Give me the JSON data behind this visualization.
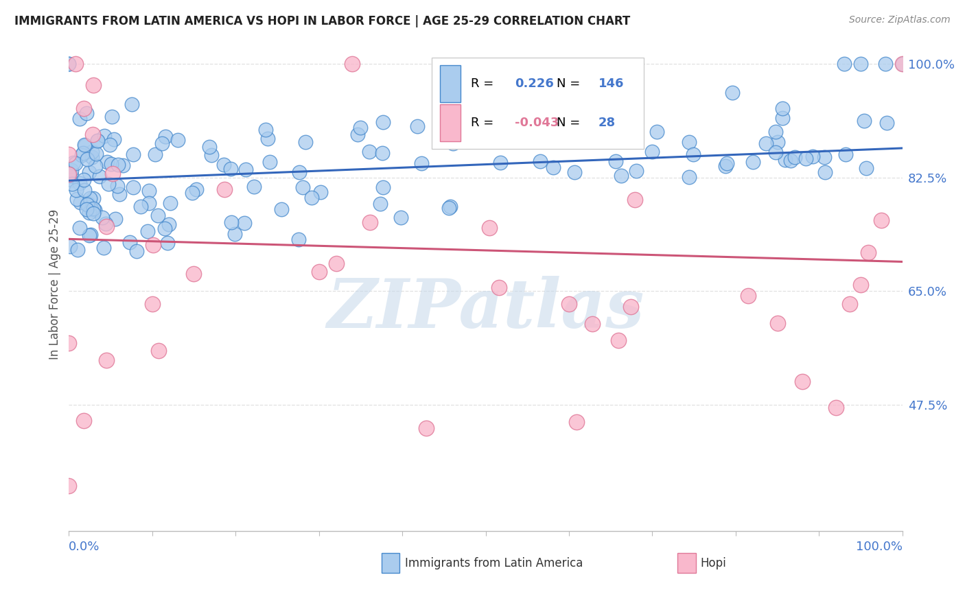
{
  "title": "IMMIGRANTS FROM LATIN AMERICA VS HOPI IN LABOR FORCE | AGE 25-29 CORRELATION CHART",
  "source": "Source: ZipAtlas.com",
  "ylabel": "In Labor Force | Age 25-29",
  "ytick_labels": [
    "100.0%",
    "82.5%",
    "65.0%",
    "47.5%"
  ],
  "ytick_values": [
    1.0,
    0.825,
    0.65,
    0.475
  ],
  "legend_blue_r": "0.226",
  "legend_blue_n": "146",
  "legend_pink_r": "-0.043",
  "legend_pink_n": "28",
  "blue_fill_color": "#aaccee",
  "blue_edge_color": "#4488cc",
  "pink_fill_color": "#f9b8cc",
  "pink_edge_color": "#e07898",
  "blue_line_color": "#3366bb",
  "pink_line_color": "#cc5577",
  "watermark": "ZIPatlas",
  "watermark_color": "#c8d8e8",
  "blue_trend_y_start": 0.82,
  "blue_trend_y_end": 0.87,
  "pink_trend_y_start": 0.73,
  "pink_trend_y_end": 0.695,
  "xmin": 0.0,
  "xmax": 1.0,
  "ymin": 0.28,
  "ymax": 1.04,
  "background_color": "#ffffff",
  "grid_color": "#e0e0e0",
  "title_color": "#222222",
  "axis_label_color": "#555555",
  "tick_label_color": "#4477cc",
  "source_color": "#888888",
  "legend_r_color": "#000000",
  "legend_n_color": "#4477cc"
}
